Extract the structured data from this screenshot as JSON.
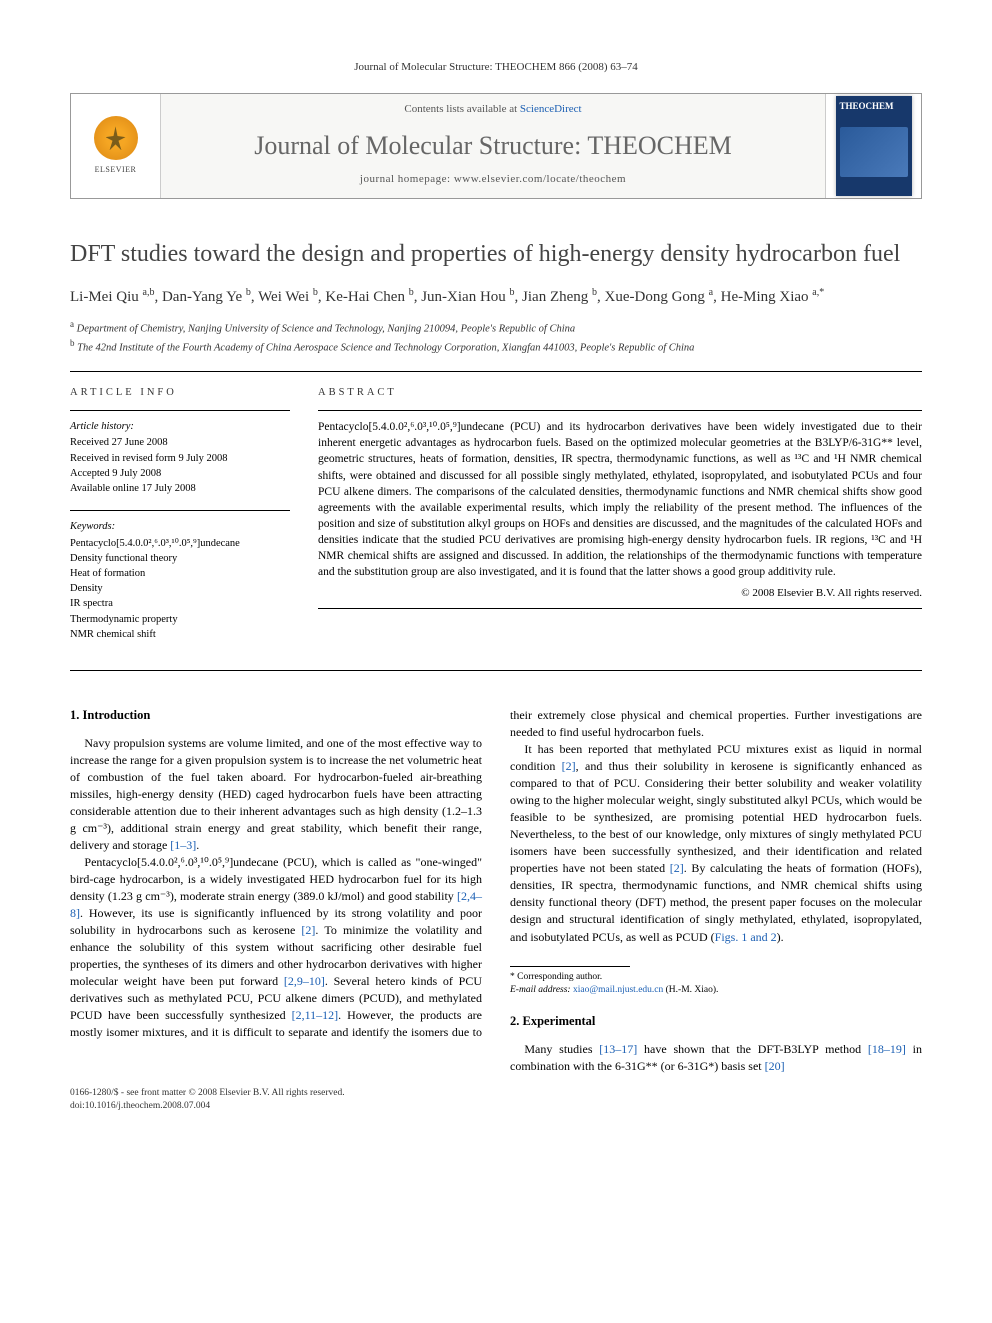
{
  "running_head": "Journal of Molecular Structure: THEOCHEM 866 (2008) 63–74",
  "masthead": {
    "contents_prefix": "Contents lists available at ",
    "contents_link": "ScienceDirect",
    "journal_name": "Journal of Molecular Structure: THEOCHEM",
    "homepage_prefix": "journal homepage: ",
    "homepage_url": "www.elsevier.com/locate/theochem",
    "publisher": "ELSEVIER",
    "cover_label": "THEOCHEM"
  },
  "article": {
    "title": "DFT studies toward the design and properties of high-energy density hydrocarbon fuel",
    "authors_html": "Li-Mei Qiu <sup>a,b</sup>, Dan-Yang Ye <sup>b</sup>, Wei Wei <sup>b</sup>, Ke-Hai Chen <sup>b</sup>, Jun-Xian Hou <sup>b</sup>, Jian Zheng <sup>b</sup>, Xue-Dong Gong <sup>a</sup>, He-Ming Xiao <sup>a,*</sup>",
    "affiliations": {
      "a": "Department of Chemistry, Nanjing University of Science and Technology, Nanjing 210094, People's Republic of China",
      "b": "The 42nd Institute of the Fourth Academy of China Aerospace Science and Technology Corporation, Xiangfan 441003, People's Republic of China"
    }
  },
  "info": {
    "heading": "ARTICLE INFO",
    "history_label": "Article history:",
    "history": [
      "Received 27 June 2008",
      "Received in revised form 9 July 2008",
      "Accepted 9 July 2008",
      "Available online 17 July 2008"
    ],
    "keywords_label": "Keywords:",
    "keywords": [
      "Pentacyclo[5.4.0.0²,⁶.0³,¹⁰.0⁵,⁹]undecane",
      "Density functional theory",
      "Heat of formation",
      "Density",
      "IR spectra",
      "Thermodynamic property",
      "NMR chemical shift"
    ]
  },
  "abstract": {
    "heading": "ABSTRACT",
    "text": "Pentacyclo[5.4.0.0²,⁶.0³,¹⁰.0⁵,⁹]undecane (PCU) and its hydrocarbon derivatives have been widely investigated due to their inherent energetic advantages as hydrocarbon fuels. Based on the optimized molecular geometries at the B3LYP/6-31G** level, geometric structures, heats of formation, densities, IR spectra, thermodynamic functions, as well as ¹³C and ¹H NMR chemical shifts, were obtained and discussed for all possible singly methylated, ethylated, isopropylated, and isobutylated PCUs and four PCU alkene dimers. The comparisons of the calculated densities, thermodynamic functions and NMR chemical shifts show good agreements with the available experimental results, which imply the reliability of the present method. The influences of the position and size of substitution alkyl groups on HOFs and densities are discussed, and the magnitudes of the calculated HOFs and densities indicate that the studied PCU derivatives are promising high-energy density hydrocarbon fuels. IR regions, ¹³C and ¹H NMR chemical shifts are assigned and discussed. In addition, the relationships of the thermodynamic functions with temperature and the substitution group are also investigated, and it is found that the latter shows a good group additivity rule.",
    "copyright": "© 2008 Elsevier B.V. All rights reserved."
  },
  "body": {
    "sec1_heading": "1. Introduction",
    "p1": "Navy propulsion systems are volume limited, and one of the most effective way to increase the range for a given propulsion system is to increase the net volumetric heat of combustion of the fuel taken aboard. For hydrocarbon-fueled air-breathing missiles, high-energy density (HED) caged hydrocarbon fuels have been attracting considerable attention due to their inherent advantages such as high density (1.2–1.3 g cm⁻³), additional strain energy and great stability, which benefit their range, delivery and storage ",
    "p1_ref": "[1–3]",
    "p2a": "Pentacyclo[5.4.0.0²,⁶.0³,¹⁰.0⁵,⁹]undecane (PCU), which is called as \"one-winged\" bird-cage hydrocarbon, is a widely investigated HED hydrocarbon fuel for its high density (1.23 g cm⁻³), moderate strain energy (389.0 kJ/mol) and good stability ",
    "p2_ref1": "[2,4–8]",
    "p2b": ". However, its use is significantly influenced by its strong volatility and poor solubility in hydrocarbons such as kerosene ",
    "p2_ref2": "[2]",
    "p2c": ". To minimize the volatility and enhance the solubility of this system without sacrificing other desirable fuel properties, the syntheses of its dimers and other hydrocarbon derivatives with higher molecular weight have been put forward ",
    "p2_ref3": "[2,9–10]",
    "p2d": ". Several hetero kinds of PCU derivatives such as methylated PCU, PCU alkene dimers (PCUD), and methylated PCUD have been successfully synthesized ",
    "p2_ref4": "[2,11–12]",
    "p2e": ". However, the products are mostly isomer mixtures, and it is difficult to separate and identify the isomers due to their extremely close physical and chemical properties. Further investigations are needed to find useful hydrocarbon fuels.",
    "p3a": "It has been reported that methylated PCU mixtures exist as liquid in normal condition ",
    "p3_ref1": "[2]",
    "p3b": ", and thus their solubility in kerosene is significantly enhanced as compared to that of PCU. Considering their better solubility and weaker volatility owing to the higher molecular weight, singly substituted alkyl PCUs, which would be feasible to be synthesized, are promising potential HED hydrocarbon fuels. Nevertheless, to the best of our knowledge, only mixtures of singly methylated PCU isomers have been successfully synthesized, and their identification and related properties have not been stated ",
    "p3_ref2": "[2]",
    "p3c": ". By calculating the heats of formation (HOFs), densities, IR spectra, thermodynamic functions, and NMR chemical shifts using density functional theory (DFT) method, the present paper focuses on the molecular design and structural identification of singly methylated, ethylated, isopropylated, and isobutylated PCUs, as well as PCUD (",
    "p3_figref": "Figs. 1 and 2",
    "p3d": ").",
    "sec2_heading": "2. Experimental",
    "p4a": "Many studies ",
    "p4_ref1": "[13–17]",
    "p4b": " have shown that the DFT-B3LYP method ",
    "p4_ref2": "[18–19]",
    "p4c": " in combination with the 6-31G** (or 6-31G*) basis set ",
    "p4_ref3": "[20]"
  },
  "footnotes": {
    "corr_label": "* Corresponding author.",
    "email_label": "E-mail address:",
    "email": "xiao@mail.njust.edu.cn",
    "email_who": "(H.-M. Xiao)."
  },
  "footer": {
    "line1": "0166-1280/$ - see front matter © 2008 Elsevier B.V. All rights reserved.",
    "line2": "doi:10.1016/j.theochem.2008.07.004"
  }
}
